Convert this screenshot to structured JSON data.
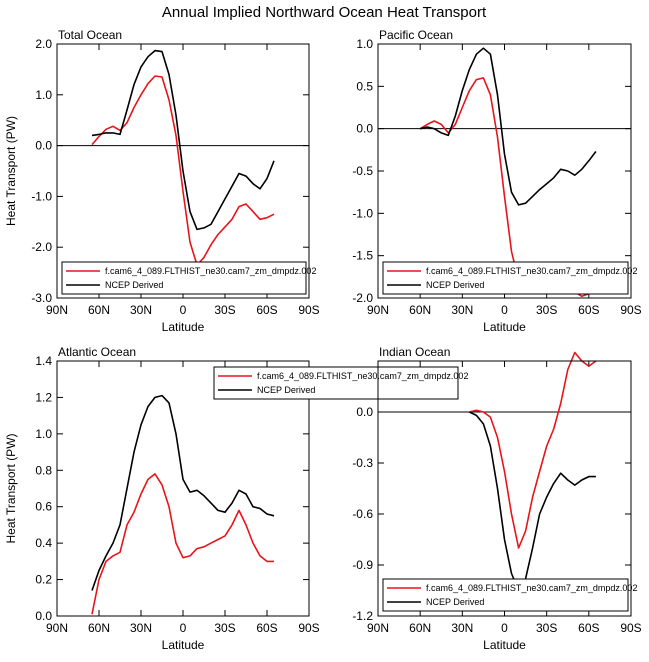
{
  "title": "Annual Implied Northward Ocean Heat Transport",
  "chart_data": [
    {
      "type": "line",
      "panel_title": "Total Ocean",
      "xlabel": "Latitude",
      "ylabel": "Heat Transport (PW)",
      "xlim": [
        90,
        -90
      ],
      "ylim": [
        -3,
        2
      ],
      "xticks": [
        90,
        60,
        30,
        0,
        -30,
        -60,
        -90
      ],
      "xtick_labels": [
        "90N",
        "60N",
        "30N",
        "0",
        "30S",
        "60S",
        "90S"
      ],
      "yticks": [
        -3,
        -2,
        -1,
        0,
        1,
        2
      ],
      "ytick_labels": [
        "-3.0",
        "-2.0",
        "-1.0",
        "0.0",
        "1.0",
        "2.0"
      ],
      "zero_line": true,
      "legend_position": "bottom",
      "series": [
        {
          "name": "f.cam6_4_089.FLTHIST_ne30.cam7_zm_dmpdz.002",
          "color": "#e8141b",
          "x": [
            65,
            60,
            55,
            50,
            45,
            40,
            35,
            30,
            25,
            20,
            15,
            10,
            5,
            0,
            -5,
            -10,
            -15,
            -20,
            -25,
            -30,
            -35,
            -40,
            -45,
            -50,
            -55,
            -60,
            -65
          ],
          "y": [
            0.02,
            0.18,
            0.32,
            0.38,
            0.3,
            0.45,
            0.75,
            1.0,
            1.22,
            1.37,
            1.35,
            0.9,
            0.2,
            -0.9,
            -1.9,
            -2.35,
            -2.2,
            -1.95,
            -1.75,
            -1.6,
            -1.45,
            -1.2,
            -1.15,
            -1.3,
            -1.45,
            -1.42,
            -1.35
          ]
        },
        {
          "name": "NCEP Derived",
          "color": "#000000",
          "x": [
            65,
            60,
            55,
            50,
            45,
            40,
            35,
            30,
            25,
            20,
            15,
            10,
            5,
            0,
            -5,
            -10,
            -15,
            -20,
            -25,
            -30,
            -35,
            -40,
            -45,
            -50,
            -55,
            -60,
            -65
          ],
          "y": [
            0.2,
            0.22,
            0.25,
            0.25,
            0.22,
            0.7,
            1.2,
            1.55,
            1.75,
            1.87,
            1.85,
            1.4,
            0.6,
            -0.5,
            -1.3,
            -1.65,
            -1.62,
            -1.55,
            -1.3,
            -1.05,
            -0.8,
            -0.55,
            -0.6,
            -0.75,
            -0.85,
            -0.65,
            -0.3
          ]
        }
      ]
    },
    {
      "type": "line",
      "panel_title": "Pacific Ocean",
      "xlabel": "Latitude",
      "ylabel": "",
      "xlim": [
        90,
        -90
      ],
      "ylim": [
        -2,
        1
      ],
      "xticks": [
        90,
        60,
        30,
        0,
        -30,
        -60,
        -90
      ],
      "xtick_labels": [
        "90N",
        "60N",
        "30N",
        "0",
        "30S",
        "60S",
        "90S"
      ],
      "yticks": [
        -2,
        -1.5,
        -1,
        -0.5,
        0,
        0.5,
        1
      ],
      "ytick_labels": [
        "-2.0",
        "-1.5",
        "-1.0",
        "-0.5",
        "0.0",
        "0.5",
        "1.0"
      ],
      "zero_line": true,
      "legend_position": "bottom",
      "series": [
        {
          "name": "f.cam6_4_089.FLTHIST_ne30.cam7_zm_dmpdz.002",
          "color": "#e8141b",
          "x": [
            60,
            55,
            50,
            45,
            40,
            35,
            30,
            25,
            20,
            15,
            10,
            5,
            0,
            -5,
            -10,
            -15,
            -20,
            -25,
            -30,
            -35,
            -40,
            -45,
            -50,
            -55,
            -60,
            -65
          ],
          "y": [
            0.0,
            0.05,
            0.09,
            0.05,
            -0.05,
            0.05,
            0.25,
            0.45,
            0.58,
            0.6,
            0.4,
            -0.1,
            -0.8,
            -1.45,
            -1.8,
            -1.9,
            -1.93,
            -1.9,
            -1.87,
            -1.86,
            -1.87,
            -1.9,
            -1.93,
            -1.98,
            -1.95,
            -1.85
          ]
        },
        {
          "name": "NCEP Derived",
          "color": "#000000",
          "x": [
            60,
            55,
            50,
            45,
            40,
            35,
            30,
            25,
            20,
            15,
            10,
            5,
            0,
            -5,
            -10,
            -15,
            -20,
            -25,
            -30,
            -35,
            -40,
            -45,
            -50,
            -55,
            -60,
            -65
          ],
          "y": [
            0.0,
            0.02,
            0.0,
            -0.05,
            -0.08,
            0.15,
            0.45,
            0.7,
            0.88,
            0.95,
            0.88,
            0.4,
            -0.3,
            -0.75,
            -0.9,
            -0.88,
            -0.8,
            -0.72,
            -0.65,
            -0.58,
            -0.48,
            -0.5,
            -0.55,
            -0.48,
            -0.38,
            -0.27
          ]
        }
      ]
    },
    {
      "type": "line",
      "panel_title": "Atlantic Ocean",
      "xlabel": "Latitude",
      "ylabel": "Heat Transport (PW)",
      "xlim": [
        90,
        -90
      ],
      "ylim": [
        0,
        1.4
      ],
      "xticks": [
        90,
        60,
        30,
        0,
        -30,
        -60,
        -90
      ],
      "xtick_labels": [
        "90N",
        "60N",
        "30N",
        "0",
        "30S",
        "60S",
        "90S"
      ],
      "yticks": [
        0,
        0.2,
        0.4,
        0.6,
        0.8,
        1.0,
        1.2,
        1.4
      ],
      "ytick_labels": [
        "0.0",
        "0.2",
        "0.4",
        "0.6",
        "0.8",
        "1.0",
        "1.2",
        "1.4"
      ],
      "zero_line": false,
      "legend_position": "top",
      "series": [
        {
          "name": "f.cam6_4_089.FLTHIST_ne30.cam7_zm_dmpdz.002",
          "color": "#e8141b",
          "x": [
            65,
            60,
            55,
            50,
            45,
            40,
            35,
            30,
            25,
            20,
            15,
            10,
            5,
            0,
            -5,
            -10,
            -15,
            -20,
            -25,
            -30,
            -35,
            -40,
            -45,
            -50,
            -55,
            -60,
            -65
          ],
          "y": [
            0.01,
            0.2,
            0.3,
            0.33,
            0.35,
            0.5,
            0.57,
            0.67,
            0.75,
            0.78,
            0.72,
            0.6,
            0.4,
            0.32,
            0.33,
            0.37,
            0.38,
            0.4,
            0.42,
            0.44,
            0.5,
            0.58,
            0.5,
            0.4,
            0.33,
            0.3,
            0.3
          ]
        },
        {
          "name": "NCEP Derived",
          "color": "#000000",
          "x": [
            65,
            60,
            55,
            50,
            45,
            40,
            35,
            30,
            25,
            20,
            15,
            10,
            5,
            0,
            -5,
            -10,
            -15,
            -20,
            -25,
            -30,
            -35,
            -40,
            -45,
            -50,
            -55,
            -60,
            -65
          ],
          "y": [
            0.14,
            0.25,
            0.33,
            0.4,
            0.5,
            0.7,
            0.9,
            1.05,
            1.15,
            1.2,
            1.21,
            1.17,
            1.0,
            0.75,
            0.68,
            0.69,
            0.66,
            0.62,
            0.58,
            0.57,
            0.62,
            0.69,
            0.67,
            0.6,
            0.59,
            0.56,
            0.55
          ]
        }
      ]
    },
    {
      "type": "line",
      "panel_title": "Indian Ocean",
      "xlabel": "Latitude",
      "ylabel": "",
      "xlim": [
        90,
        -90
      ],
      "ylim": [
        -1.2,
        0.3
      ],
      "xticks": [
        90,
        60,
        30,
        0,
        -30,
        -60,
        -90
      ],
      "xtick_labels": [
        "90N",
        "60N",
        "30N",
        "0",
        "30S",
        "60S",
        "90S"
      ],
      "yticks": [
        -1.2,
        -0.9,
        -0.6,
        -0.3,
        0
      ],
      "ytick_labels": [
        "-1.2",
        "-0.9",
        "-0.6",
        "-0.3",
        "0.0"
      ],
      "zero_line": true,
      "legend_position": "bottom",
      "series": [
        {
          "name": "f.cam6_4_089.FLTHIST_ne30.cam7_zm_dmpdz.002",
          "color": "#e8141b",
          "x": [
            25,
            20,
            15,
            10,
            5,
            0,
            -5,
            -10,
            -15,
            -20,
            -25,
            -30,
            -35,
            -40,
            -45,
            -50,
            -55,
            -60,
            -65
          ],
          "y": [
            0.0,
            0.01,
            0.0,
            -0.03,
            -0.15,
            -0.35,
            -0.6,
            -0.8,
            -0.7,
            -0.5,
            -0.35,
            -0.2,
            -0.1,
            0.05,
            0.25,
            0.35,
            0.3,
            0.27,
            0.3
          ]
        },
        {
          "name": "NCEP Derived",
          "color": "#000000",
          "x": [
            25,
            20,
            15,
            10,
            5,
            0,
            -5,
            -10,
            -15,
            -20,
            -25,
            -30,
            -35,
            -40,
            -45,
            -50,
            -55,
            -60,
            -65
          ],
          "y": [
            0.0,
            -0.02,
            -0.07,
            -0.2,
            -0.45,
            -0.75,
            -0.95,
            -1.05,
            -0.98,
            -0.8,
            -0.6,
            -0.5,
            -0.42,
            -0.36,
            -0.4,
            -0.43,
            -0.4,
            -0.38,
            -0.38
          ]
        }
      ]
    }
  ]
}
